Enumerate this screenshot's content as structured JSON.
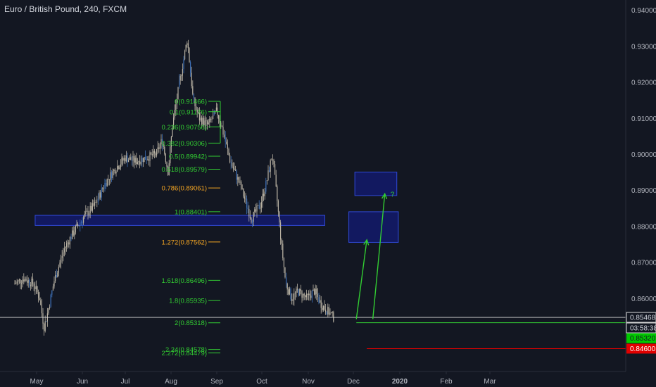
{
  "header": {
    "symbol_title": "Euro / British Pound, 240, FXCM"
  },
  "colors": {
    "background": "#131722",
    "axis_text": "#b2b5be",
    "candle": "#b9b2a3",
    "candle_blue": "#3d6fb6",
    "fib_green": "#32cd32",
    "fib_orange": "#f5a623",
    "zone_fill": "#131a6b",
    "zone_border": "#3049d9",
    "current_price_bg": "#00c800",
    "stop_bg": "#e10000",
    "current_line": "#d9d9d9"
  },
  "chart_data": {
    "type": "candlestick",
    "title": "Euro / British Pound, 240, FXCM",
    "x_tick_labels": [
      "May",
      "Jun",
      "Jul",
      "Aug",
      "Sep",
      "Oct",
      "Nov",
      "Dec",
      "2020",
      "Feb",
      "Mar"
    ],
    "y_tick_labels": [
      "0.94000",
      "0.93000",
      "0.92000",
      "0.91000",
      "0.90000",
      "0.89000",
      "0.88000",
      "0.87000",
      "0.86000"
    ],
    "ylim": [
      0.841,
      0.943
    ],
    "price_path": [
      {
        "date": "2019-04-16",
        "close": 0.864
      },
      {
        "date": "2019-04-22",
        "close": 0.8655
      },
      {
        "date": "2019-04-29",
        "close": 0.864
      },
      {
        "date": "2019-05-03",
        "close": 0.86
      },
      {
        "date": "2019-05-06",
        "close": 0.852
      },
      {
        "date": "2019-05-08",
        "close": 0.855
      },
      {
        "date": "2019-05-13",
        "close": 0.865
      },
      {
        "date": "2019-05-20",
        "close": 0.874
      },
      {
        "date": "2019-05-27",
        "close": 0.879
      },
      {
        "date": "2019-06-03",
        "close": 0.883
      },
      {
        "date": "2019-06-10",
        "close": 0.886
      },
      {
        "date": "2019-06-17",
        "close": 0.892
      },
      {
        "date": "2019-06-24",
        "close": 0.896
      },
      {
        "date": "2019-07-01",
        "close": 0.899
      },
      {
        "date": "2019-07-08",
        "close": 0.898
      },
      {
        "date": "2019-07-15",
        "close": 0.899
      },
      {
        "date": "2019-07-22",
        "close": 0.9
      },
      {
        "date": "2019-07-26",
        "close": 0.904
      },
      {
        "date": "2019-07-30",
        "close": 0.895
      },
      {
        "date": "2019-08-02",
        "close": 0.908
      },
      {
        "date": "2019-08-06",
        "close": 0.918
      },
      {
        "date": "2019-08-09",
        "close": 0.925
      },
      {
        "date": "2019-08-12",
        "close": 0.932
      },
      {
        "date": "2019-08-16",
        "close": 0.915
      },
      {
        "date": "2019-08-20",
        "close": 0.91
      },
      {
        "date": "2019-08-26",
        "close": 0.908
      },
      {
        "date": "2019-09-01",
        "close": 0.912
      },
      {
        "date": "2019-09-04",
        "close": 0.908
      },
      {
        "date": "2019-09-10",
        "close": 0.898
      },
      {
        "date": "2019-09-16",
        "close": 0.892
      },
      {
        "date": "2019-09-20",
        "close": 0.887
      },
      {
        "date": "2019-09-24",
        "close": 0.882
      },
      {
        "date": "2019-09-30",
        "close": 0.886
      },
      {
        "date": "2019-10-04",
        "close": 0.892
      },
      {
        "date": "2019-10-08",
        "close": 0.9
      },
      {
        "date": "2019-10-11",
        "close": 0.888
      },
      {
        "date": "2019-10-14",
        "close": 0.875
      },
      {
        "date": "2019-10-17",
        "close": 0.864
      },
      {
        "date": "2019-10-21",
        "close": 0.86
      },
      {
        "date": "2019-10-25",
        "close": 0.862
      },
      {
        "date": "2019-10-31",
        "close": 0.86
      },
      {
        "date": "2019-11-05",
        "close": 0.862
      },
      {
        "date": "2019-11-10",
        "close": 0.858
      },
      {
        "date": "2019-11-15",
        "close": 0.856
      },
      {
        "date": "2019-11-18",
        "close": 0.8545
      }
    ],
    "fib_levels": [
      {
        "ratio": "0",
        "price": "0.91466",
        "color": "green",
        "value": 0.91466
      },
      {
        "ratio": "0.1",
        "price": "0.91176",
        "color": "green",
        "value": 0.91176
      },
      {
        "ratio": "0.236",
        "price": "0.90756",
        "color": "green",
        "value": 0.90756
      },
      {
        "ratio": "0.382",
        "price": "0.90306",
        "color": "green",
        "value": 0.90306
      },
      {
        "ratio": "0.5",
        "price": "0.89942",
        "color": "green",
        "value": 0.89942
      },
      {
        "ratio": "0.618",
        "price": "0.89579",
        "color": "green",
        "value": 0.89579
      },
      {
        "ratio": "0.786",
        "price": "0.89061",
        "color": "orange",
        "value": 0.89061
      },
      {
        "ratio": "1",
        "price": "0.88401",
        "color": "green",
        "value": 0.88401
      },
      {
        "ratio": "1.272",
        "price": "0.87562",
        "color": "orange",
        "value": 0.87562
      },
      {
        "ratio": "1.618",
        "price": "0.86496",
        "color": "green",
        "value": 0.86496
      },
      {
        "ratio": "1.8",
        "price": "0.85935",
        "color": "green",
        "value": 0.85935
      },
      {
        "ratio": "2",
        "price": "0.85318",
        "color": "green",
        "value": 0.85318
      },
      {
        "ratio": "2.24",
        "price": "0.84578",
        "color": "green",
        "value": 0.84578
      },
      {
        "ratio": "2.272",
        "price": "0.84479",
        "color": "green",
        "value": 0.84479
      }
    ],
    "zones": [
      {
        "date_from": "2019-04-30",
        "date_to": "2019-11-12",
        "price_from": 0.8802,
        "price_to": 0.883
      },
      {
        "date_from": "2019-11-28",
        "date_to": "2019-12-31",
        "price_from": 0.8755,
        "price_to": 0.884
      },
      {
        "date_from": "2019-12-02",
        "date_to": "2019-12-30",
        "price_from": 0.8885,
        "price_to": 0.895
      }
    ],
    "arrows": [
      {
        "from_date": "2019-12-03",
        "from_price": 0.8542,
        "to_date": "2019-12-10",
        "to_price": 0.8762
      },
      {
        "from_date": "2019-12-14",
        "from_price": 0.8542,
        "to_date": "2019-12-22",
        "to_price": 0.889
      }
    ],
    "question_mark": "?",
    "current_price": {
      "label": "0.85468",
      "value": 0.85468
    },
    "countdown": {
      "label": "03:58:38"
    },
    "target_price": {
      "label": "0.85320",
      "value": 0.8532
    },
    "stop_price": {
      "label": "0.84600",
      "value": 0.846
    }
  }
}
